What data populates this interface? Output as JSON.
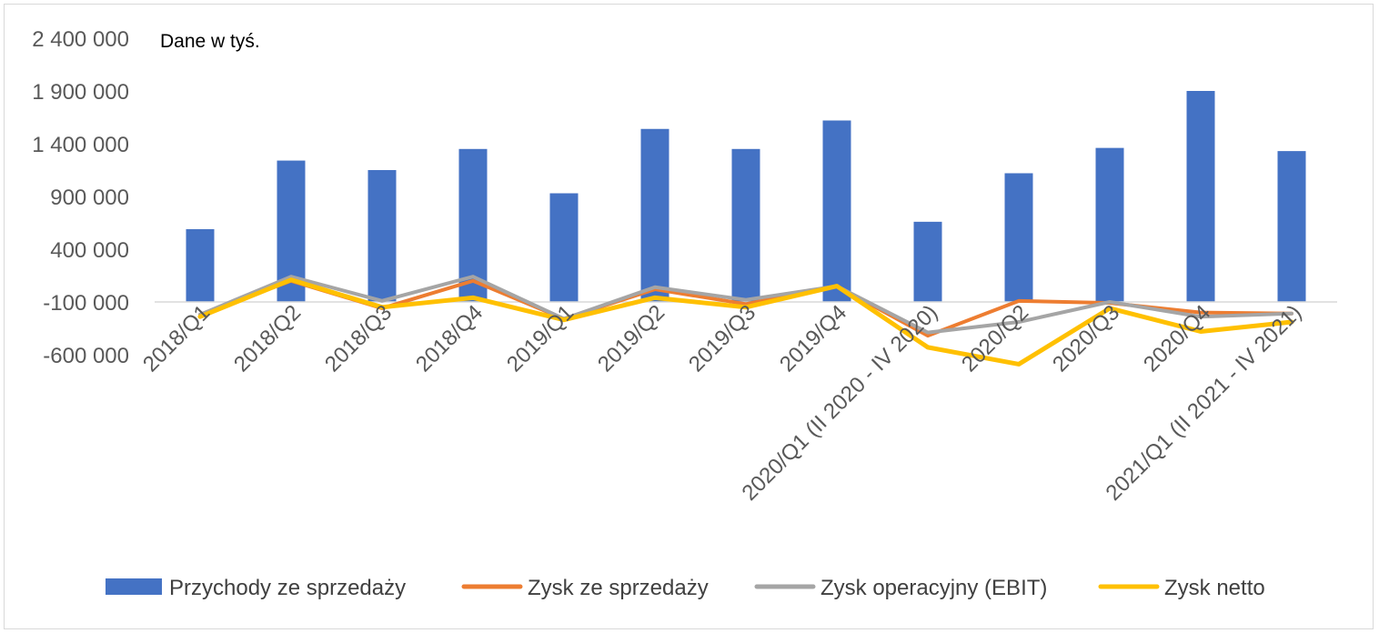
{
  "chart_data": {
    "type": "bar+line",
    "annotation": "Dane w tyś.",
    "categories": [
      "2018/Q1",
      "2018/Q2",
      "2018/Q3",
      "2018/Q4",
      "2019/Q1",
      "2019/Q2",
      "2019/Q3",
      "2019/Q4",
      "2020/Q1 (II 2020 - IV 2020)",
      "2020/Q2",
      "2020/Q3",
      "2020/Q4",
      "2021/Q1 (II 2021 - IV 2021)"
    ],
    "ylim": [
      -600000,
      2400000
    ],
    "yticks": [
      -600000,
      -100000,
      400000,
      900000,
      1400000,
      1900000,
      2400000
    ],
    "ytick_labels": [
      "-600 000",
      "-100 000",
      "400 000",
      "900 000",
      "1 400 000",
      "1 900 000",
      "2 400 000"
    ],
    "grid": false,
    "legend_position": "bottom",
    "series": [
      {
        "name": "Przychody ze sprzedaży",
        "type": "bar",
        "color": "#4472C4",
        "values": [
          590000,
          1240000,
          1150000,
          1350000,
          930000,
          1540000,
          1350000,
          1620000,
          660000,
          1120000,
          1360000,
          1900000,
          1330000
        ]
      },
      {
        "name": "Zysk ze sprzedaży",
        "type": "line",
        "color": "#ED7D31",
        "values": [
          -220000,
          100000,
          -160000,
          100000,
          -260000,
          20000,
          -120000,
          50000,
          -420000,
          -90000,
          -110000,
          -200000,
          -210000
        ]
      },
      {
        "name": "Zysk operacyjny (EBIT)",
        "type": "line",
        "color": "#A5A5A5",
        "values": [
          -220000,
          140000,
          -90000,
          140000,
          -260000,
          40000,
          -80000,
          50000,
          -390000,
          -290000,
          -100000,
          -240000,
          -210000
        ]
      },
      {
        "name": "Zysk netto",
        "type": "line",
        "color": "#FFC000",
        "values": [
          -240000,
          110000,
          -150000,
          -60000,
          -270000,
          -60000,
          -150000,
          50000,
          -530000,
          -690000,
          -160000,
          -380000,
          -290000
        ]
      }
    ]
  }
}
